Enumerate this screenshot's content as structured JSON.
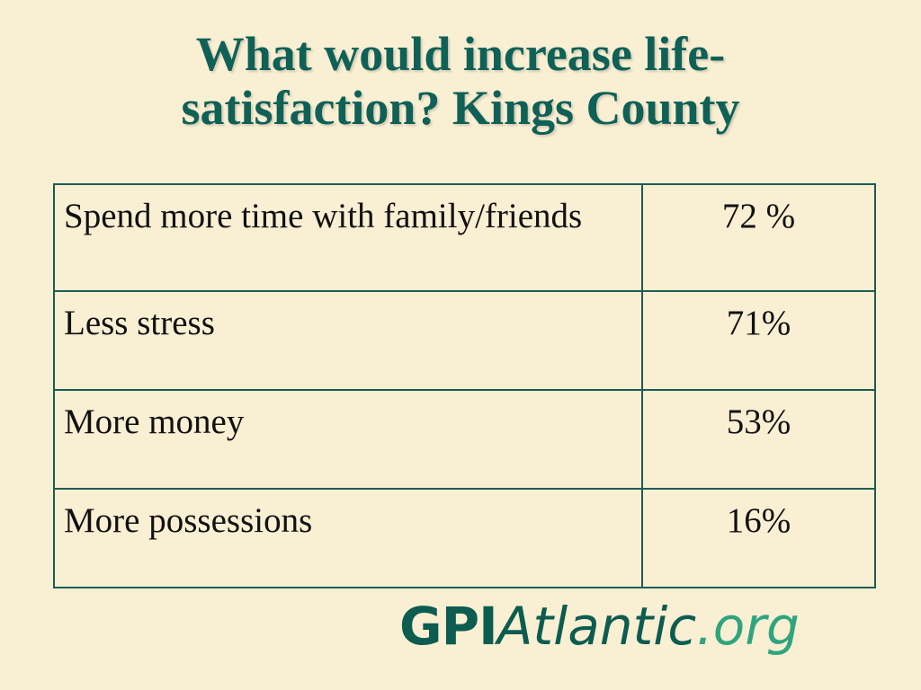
{
  "header": {
    "title_lines": [
      "What would increase life-",
      "satisfaction? Kings County"
    ]
  },
  "table": {
    "rows": [
      [
        "Spend more time with family/friends",
        "72 %"
      ],
      [
        "Less stress",
        "71%"
      ],
      [
        "More money",
        "53%"
      ],
      [
        "More possessions",
        "16%"
      ]
    ]
  },
  "logo": {
    "parts": [
      "GPI",
      "Atlantic",
      ".org"
    ]
  }
}
